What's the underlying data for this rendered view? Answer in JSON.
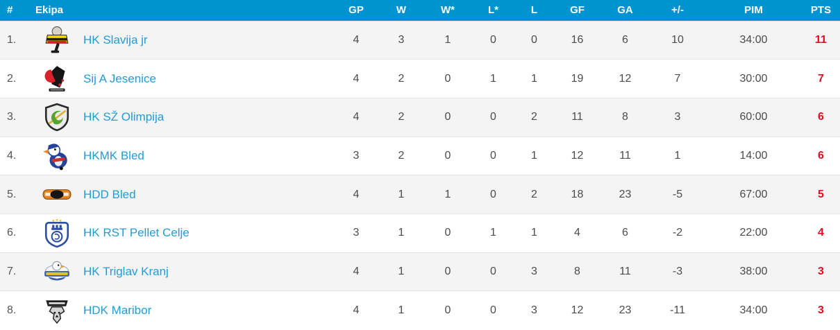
{
  "table": {
    "columns": [
      {
        "key": "rank",
        "label": "#"
      },
      {
        "key": "team",
        "label": "Ekipa"
      },
      {
        "key": "gp",
        "label": "GP"
      },
      {
        "key": "w",
        "label": "W"
      },
      {
        "key": "w_ot",
        "label": "W*"
      },
      {
        "key": "l_ot",
        "label": "L*"
      },
      {
        "key": "l",
        "label": "L"
      },
      {
        "key": "gf",
        "label": "GF"
      },
      {
        "key": "ga",
        "label": "GA"
      },
      {
        "key": "diff",
        "label": "+/-"
      },
      {
        "key": "pim",
        "label": "PIM"
      },
      {
        "key": "pts",
        "label": "PTS"
      }
    ],
    "rows": [
      {
        "rank": "1.",
        "team": "HK Slavija jr",
        "logo": "slavija",
        "gp": "4",
        "w": "3",
        "w_ot": "1",
        "l_ot": "0",
        "l": "0",
        "gf": "16",
        "ga": "6",
        "diff": "10",
        "pim": "34:00",
        "pts": "11"
      },
      {
        "rank": "2.",
        "team": "Sij A Jesenice",
        "logo": "jesenice",
        "gp": "4",
        "w": "2",
        "w_ot": "0",
        "l_ot": "1",
        "l": "1",
        "gf": "19",
        "ga": "12",
        "diff": "7",
        "pim": "30:00",
        "pts": "7"
      },
      {
        "rank": "3.",
        "team": "HK SŽ Olimpija",
        "logo": "olimpija",
        "gp": "4",
        "w": "2",
        "w_ot": "0",
        "l_ot": "0",
        "l": "2",
        "gf": "11",
        "ga": "8",
        "diff": "3",
        "pim": "60:00",
        "pts": "6"
      },
      {
        "rank": "4.",
        "team": "HKMK Bled",
        "logo": "hkmk_bled",
        "gp": "3",
        "w": "2",
        "w_ot": "0",
        "l_ot": "0",
        "l": "1",
        "gf": "12",
        "ga": "11",
        "diff": "1",
        "pim": "14:00",
        "pts": "6"
      },
      {
        "rank": "5.",
        "team": "HDD Bled",
        "logo": "hdd_bled",
        "gp": "4",
        "w": "1",
        "w_ot": "1",
        "l_ot": "0",
        "l": "2",
        "gf": "18",
        "ga": "23",
        "diff": "-5",
        "pim": "67:00",
        "pts": "5"
      },
      {
        "rank": "6.",
        "team": "HK RST Pellet Celje",
        "logo": "celje",
        "gp": "3",
        "w": "1",
        "w_ot": "0",
        "l_ot": "1",
        "l": "1",
        "gf": "4",
        "ga": "6",
        "diff": "-2",
        "pim": "22:00",
        "pts": "4"
      },
      {
        "rank": "7.",
        "team": "HK Triglav Kranj",
        "logo": "triglav",
        "gp": "4",
        "w": "1",
        "w_ot": "0",
        "l_ot": "0",
        "l": "3",
        "gf": "8",
        "ga": "11",
        "diff": "-3",
        "pim": "38:00",
        "pts": "3"
      },
      {
        "rank": "8.",
        "team": "HDK Maribor",
        "logo": "maribor",
        "gp": "4",
        "w": "1",
        "w_ot": "0",
        "l_ot": "0",
        "l": "3",
        "gf": "12",
        "ga": "23",
        "diff": "-11",
        "pim": "34:00",
        "pts": "3"
      }
    ]
  },
  "colors": {
    "header_bg": "#0093d2",
    "header_text": "#ffffff",
    "link": "#1f9cd8",
    "points": "#e30b20",
    "row_alt_bg": "#f4f4f4",
    "row_text": "#4b4b4b"
  }
}
